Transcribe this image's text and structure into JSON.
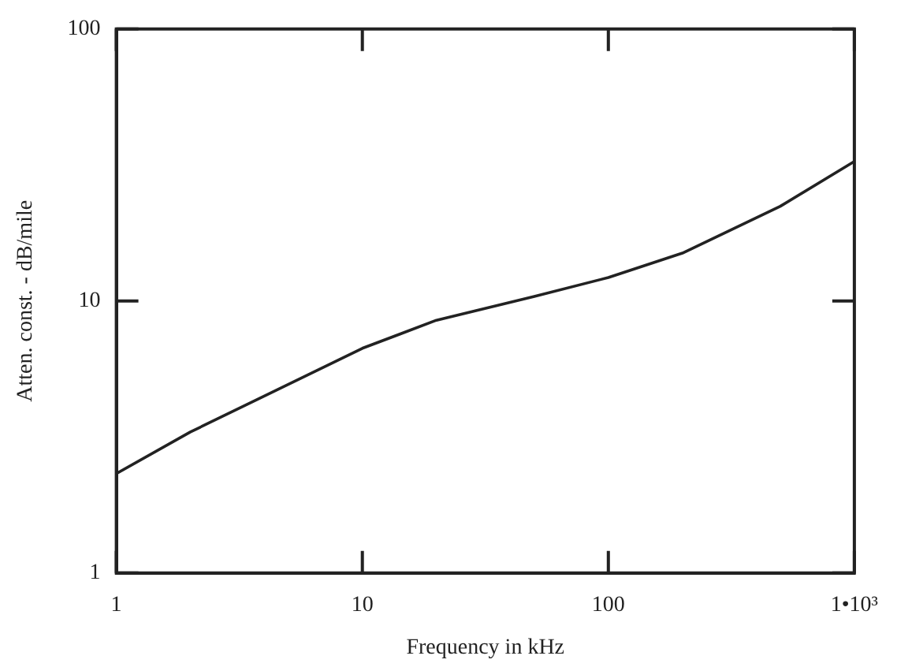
{
  "chart_data": {
    "type": "line",
    "xlabel": "Frequency in kHz",
    "ylabel": "Atten. const. - dB/mile",
    "x": [
      1,
      2,
      10,
      20,
      50,
      100,
      200,
      500,
      1000
    ],
    "series": [
      {
        "color": "#222222",
        "values": [
          2.32,
          3.3,
          6.7,
          8.5,
          10.4,
          12.2,
          15.0,
          22.3,
          32.6
        ]
      }
    ],
    "log": "xy",
    "xlim": [
      1,
      1000
    ],
    "ylim": [
      1,
      100
    ],
    "xticks": [
      1,
      10,
      100,
      {
        "value": 1000,
        "label": "1•10³"
      }
    ],
    "yticks": [
      1,
      10,
      100
    ],
    "grid": false,
    "legend": false,
    "marker": "none",
    "line_style": "solid"
  }
}
